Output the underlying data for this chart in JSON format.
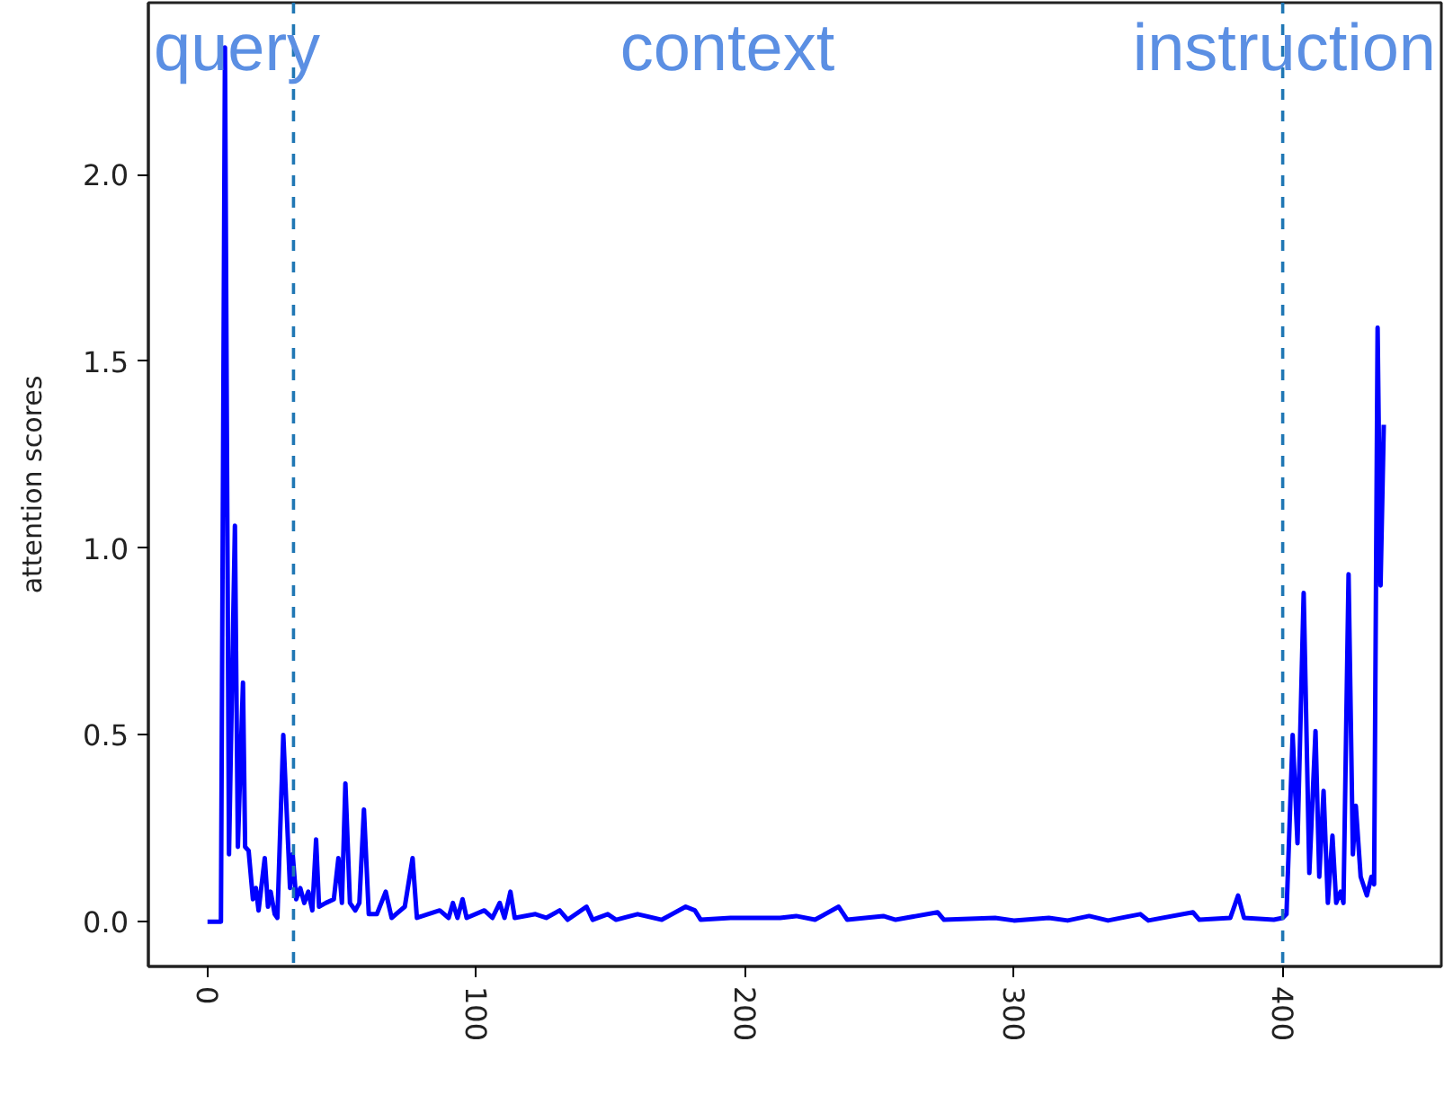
{
  "chart_data": {
    "type": "line",
    "ylabel": "attention scores",
    "annotations": [
      "query",
      "context",
      "instruction"
    ],
    "xlim": [
      -22,
      459
    ],
    "ylim": [
      -0.12,
      2.46
    ],
    "xticks": [
      0,
      100,
      200,
      300,
      400
    ],
    "yticks": [
      {
        "value": 0,
        "label": "0.0"
      },
      {
        "value": 0.5,
        "label": "0.5"
      },
      {
        "value": 1,
        "label": "1.0"
      },
      {
        "value": 1.5,
        "label": "1.5"
      },
      {
        "value": 2,
        "label": "2.0"
      }
    ],
    "grid": false,
    "ref_lines": [
      {
        "axis": "x",
        "value": 32,
        "color": "#1f77b4",
        "line_style": "dashed"
      },
      {
        "axis": "x",
        "value": 400,
        "color": "#1f77b4",
        "line_style": "dashed"
      }
    ],
    "x": [
      0,
      5,
      6.5,
      8,
      10.2,
      11.3,
      13.2,
      14,
      15.3,
      16.9,
      18,
      19,
      21.3,
      22.5,
      23.5,
      25,
      26,
      28.2,
      30.7,
      31.7,
      33,
      34.5,
      36,
      37.5,
      39,
      40.4,
      41.5,
      44,
      47,
      48.7,
      50,
      51.3,
      53,
      55,
      56.5,
      58.2,
      60,
      63,
      66.3,
      68.5,
      73.4,
      76.3,
      77.9,
      82,
      86.4,
      89.7,
      91.3,
      93,
      94.9,
      96.4,
      103,
      106,
      108.7,
      110.5,
      112.7,
      114.3,
      122,
      126,
      131,
      134,
      141,
      143.3,
      148.9,
      152,
      160,
      169,
      177.9,
      181.3,
      183.5,
      194.6,
      200,
      213,
      219,
      226,
      234.8,
      238,
      251.4,
      256,
      271.6,
      274,
      293,
      300,
      313,
      320,
      328,
      335,
      347,
      350,
      366.6,
      369,
      380.5,
      383.4,
      385.6,
      396.7,
      400,
      401.4,
      403.7,
      405.5,
      407.8,
      409.9,
      412.2,
      413.6,
      415.2,
      416.8,
      418.5,
      419.9,
      421.5,
      422.6,
      424.5,
      426.1,
      427.2,
      429,
      431.3,
      433,
      434,
      435.3,
      436.4,
      437.6
    ],
    "series": [
      {
        "color": "#0000ff",
        "values": [
          0,
          0,
          2.34,
          0.18,
          1.06,
          0.2,
          0.64,
          0.2,
          0.19,
          0.06,
          0.09,
          0.03,
          0.17,
          0.04,
          0.08,
          0.02,
          0.01,
          0.5,
          0.09,
          0.18,
          0.06,
          0.09,
          0.05,
          0.08,
          0.03,
          0.22,
          0.04,
          0.05,
          0.06,
          0.17,
          0.05,
          0.37,
          0.05,
          0.03,
          0.05,
          0.3,
          0.02,
          0.02,
          0.08,
          0.01,
          0.04,
          0.17,
          0.01,
          0.02,
          0.03,
          0.01,
          0.05,
          0.01,
          0.06,
          0.01,
          0.03,
          0.01,
          0.05,
          0.01,
          0.08,
          0.01,
          0.02,
          0.01,
          0.03,
          0.005,
          0.04,
          0.005,
          0.02,
          0.005,
          0.02,
          0.005,
          0.04,
          0.03,
          0.005,
          0.01,
          0.01,
          0.01,
          0.015,
          0.005,
          0.04,
          0.005,
          0.015,
          0.005,
          0.025,
          0.005,
          0.01,
          0.003,
          0.01,
          0.003,
          0.015,
          0.003,
          0.02,
          0.003,
          0.025,
          0.005,
          0.01,
          0.07,
          0.01,
          0.005,
          0.01,
          0.02,
          0.5,
          0.21,
          0.88,
          0.13,
          0.51,
          0.12,
          0.35,
          0.05,
          0.23,
          0.05,
          0.08,
          0.05,
          0.93,
          0.18,
          0.31,
          0.12,
          0.07,
          0.12,
          0.1,
          1.59,
          0.9,
          1.33
        ]
      }
    ]
  }
}
